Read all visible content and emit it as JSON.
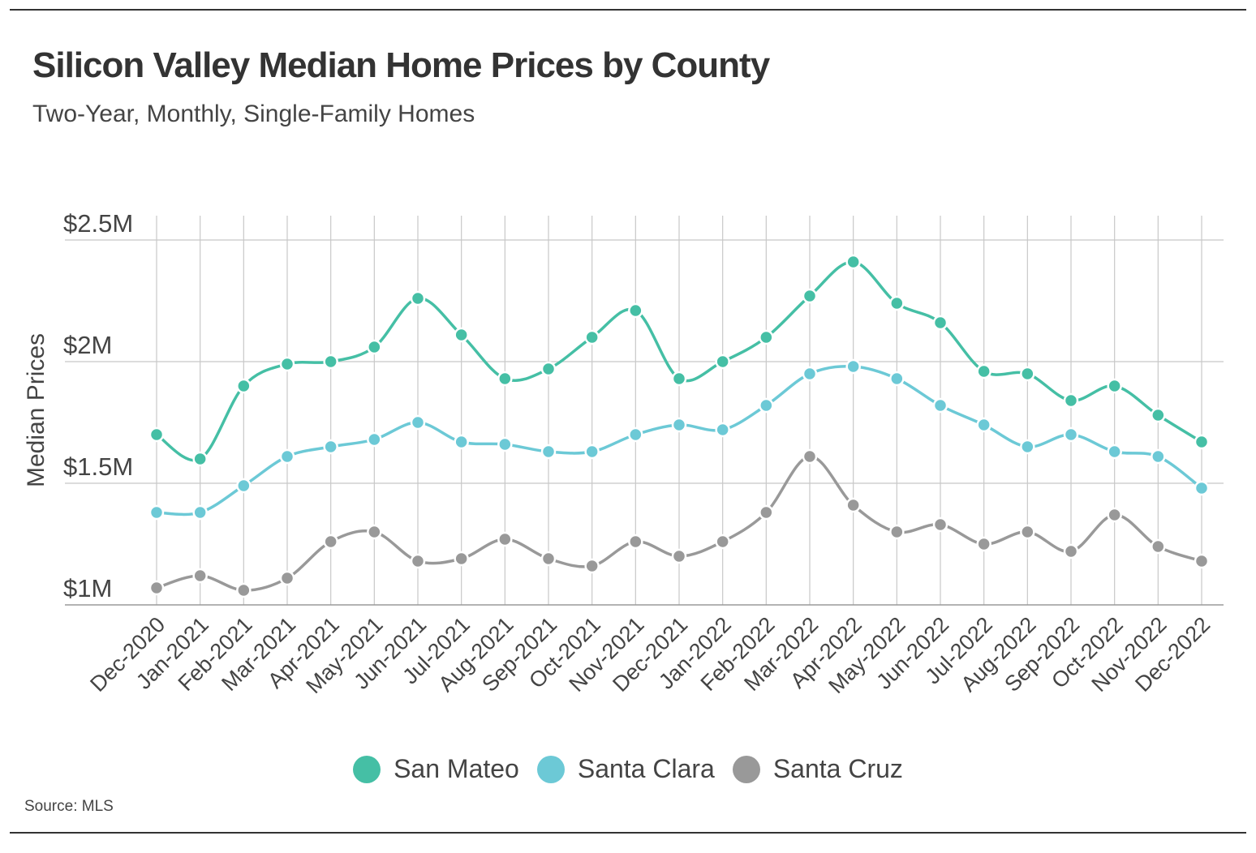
{
  "title": "Silicon Valley Median Home Prices by County",
  "subtitle": "Two-Year, Monthly, Single-Family Homes",
  "source": "Source: MLS",
  "chart_data": {
    "type": "line",
    "title": "Silicon Valley Median Home Prices by County",
    "subtitle": "Two-Year, Monthly, Single-Family Homes",
    "xlabel": "",
    "ylabel": "Median Prices",
    "ylim": [
      1.0,
      2.5
    ],
    "yticks": [
      1.0,
      1.5,
      2.0,
      2.5
    ],
    "ytick_labels": [
      "$1M",
      "$1.5M",
      "$2M",
      "$2.5M"
    ],
    "grid": true,
    "legend_position": "bottom",
    "categories": [
      "Dec-2020",
      "Jan-2021",
      "Feb-2021",
      "Mar-2021",
      "Apr-2021",
      "May-2021",
      "Jun-2021",
      "Jul-2021",
      "Aug-2021",
      "Sep-2021",
      "Oct-2021",
      "Nov-2021",
      "Dec-2021",
      "Jan-2022",
      "Feb-2022",
      "Mar-2022",
      "Apr-2022",
      "May-2022",
      "Jun-2022",
      "Jul-2022",
      "Aug-2022",
      "Sep-2022",
      "Oct-2022",
      "Nov-2022",
      "Dec-2022"
    ],
    "series": [
      {
        "name": "San Mateo",
        "color": "#45bfa5",
        "values": [
          1.7,
          1.6,
          1.9,
          1.99,
          2.0,
          2.06,
          2.26,
          2.11,
          1.93,
          1.97,
          2.1,
          2.21,
          1.93,
          2.0,
          2.1,
          2.27,
          2.41,
          2.24,
          2.16,
          1.96,
          1.95,
          1.84,
          1.9,
          1.78,
          1.67
        ]
      },
      {
        "name": "Santa Clara",
        "color": "#6cc9d6",
        "values": [
          1.38,
          1.38,
          1.49,
          1.61,
          1.65,
          1.68,
          1.75,
          1.67,
          1.66,
          1.63,
          1.63,
          1.7,
          1.74,
          1.72,
          1.82,
          1.95,
          1.98,
          1.93,
          1.82,
          1.74,
          1.65,
          1.7,
          1.63,
          1.61,
          1.48
        ]
      },
      {
        "name": "Santa Cruz",
        "color": "#999999",
        "values": [
          1.07,
          1.12,
          1.06,
          1.11,
          1.26,
          1.3,
          1.18,
          1.19,
          1.27,
          1.19,
          1.16,
          1.26,
          1.2,
          1.26,
          1.38,
          1.61,
          1.41,
          1.3,
          1.33,
          1.25,
          1.3,
          1.22,
          1.37,
          1.24,
          1.18
        ]
      }
    ]
  }
}
